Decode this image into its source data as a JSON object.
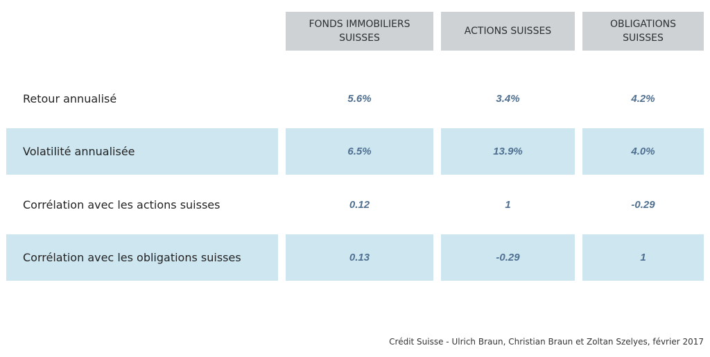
{
  "table": {
    "columns": [
      "FONDS IMMOBILIERS SUISSES",
      "ACTIONS SUISSES",
      "OBLIGATIONS SUISSES"
    ],
    "rows": [
      [
        "Retour annualisé",
        "5.6%",
        "3.4%",
        "4.2%"
      ],
      [
        "Volatilité annualisée",
        "6.5%",
        "13.9%",
        "4.0%"
      ],
      [
        "Corrélation avec les actions suisses",
        "0.12",
        "1",
        "-0.29"
      ],
      [
        "Corrélation avec les obligations suisses",
        "0.13",
        "-0.29",
        "1"
      ]
    ]
  },
  "credit": "Crédit Suisse - Ulrich Braun, Christian Braun et Zoltan Szelyes, février 2017"
}
